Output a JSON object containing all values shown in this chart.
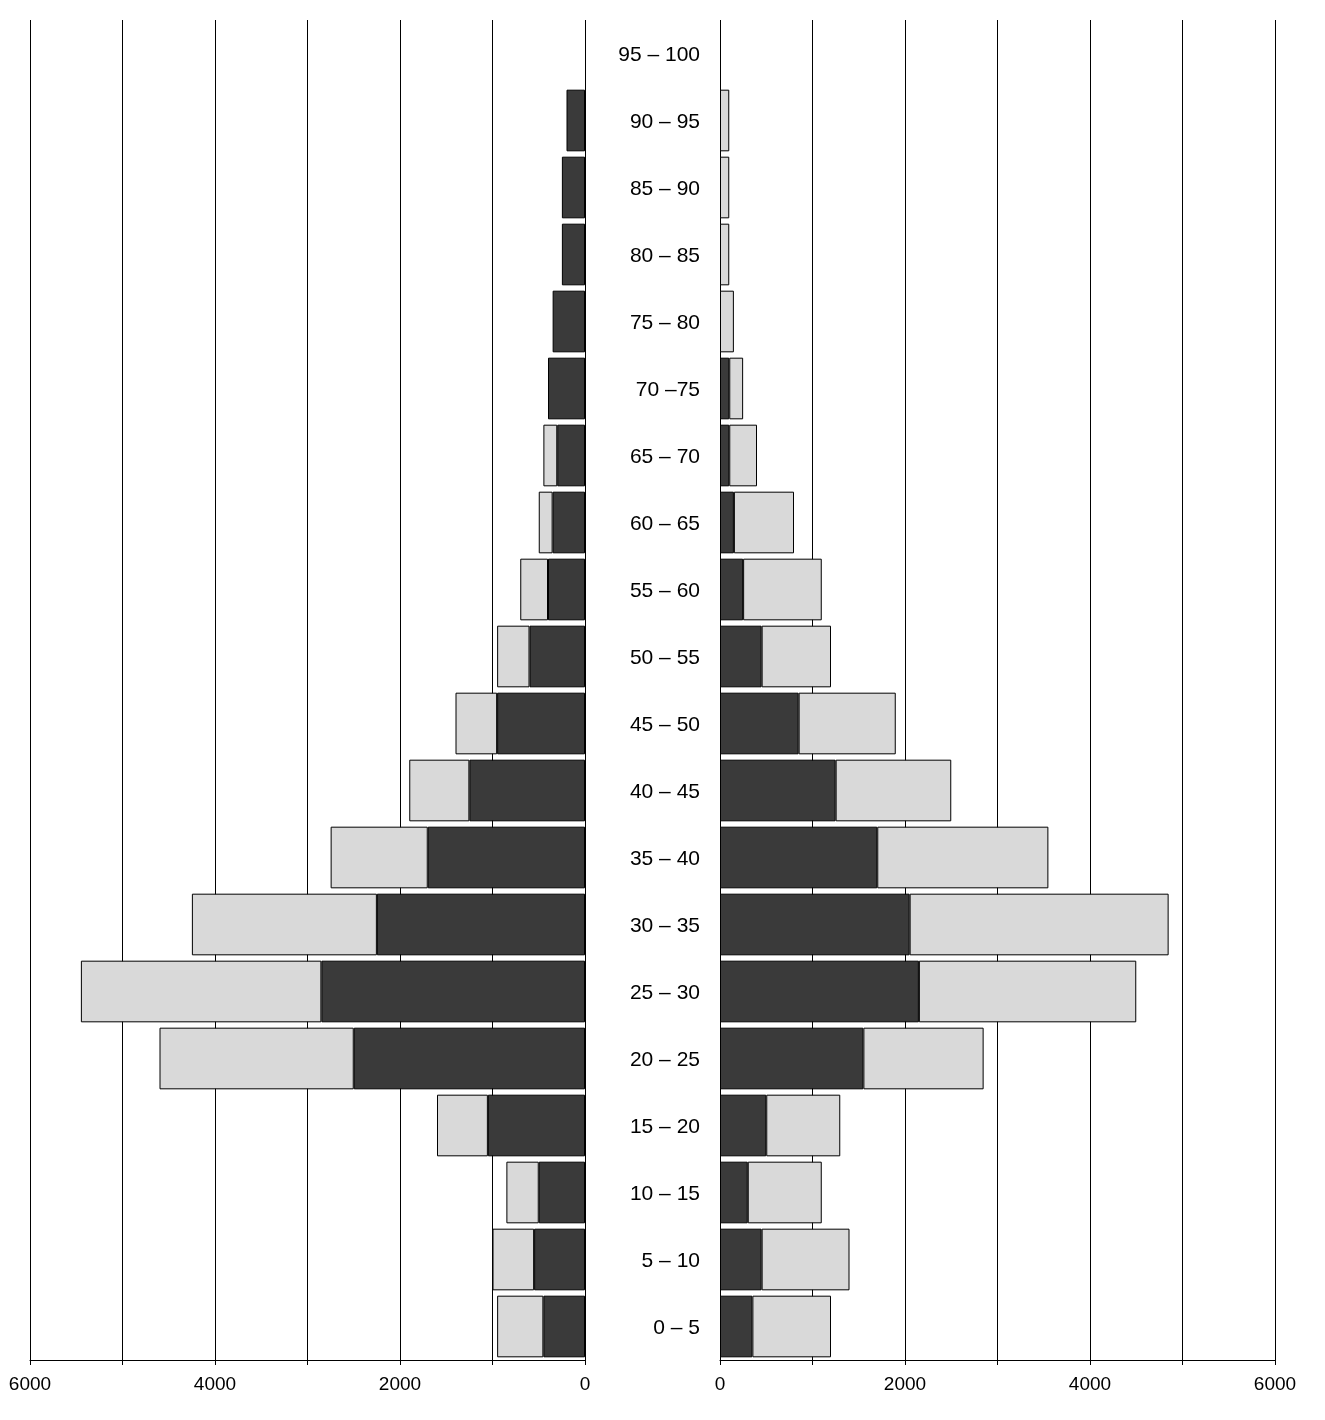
{
  "chart_data": [
    {
      "type": "bar",
      "orientation": "horizontal",
      "stacked": true,
      "grid": "x",
      "tick_labels": "x",
      "categories": [
        null,
        null,
        null,
        null,
        null,
        null,
        null,
        null,
        null,
        null,
        null,
        null,
        null,
        null,
        null,
        null,
        null,
        null,
        null,
        null
      ],
      "xlim": [
        6000,
        0
      ],
      "xticks": [
        6000,
        {
          "value": 5000,
          "label": null
        },
        4000,
        {
          "value": 3000,
          "label": null
        },
        2000,
        {
          "value": 1000,
          "label": null
        },
        0
      ],
      "series": [
        {
          "color": "#3a3a3a",
          "values": [
            null,
            200,
            250,
            250,
            350,
            400,
            300,
            350,
            400,
            600,
            950,
            1250,
            1700,
            2250,
            2850,
            2500,
            1050,
            500,
            550,
            450
          ]
        },
        {
          "color": "#d9d9d9",
          "values": [
            null,
            null,
            null,
            null,
            null,
            null,
            150,
            150,
            300,
            350,
            450,
            650,
            1050,
            2000,
            2600,
            2100,
            550,
            350,
            450,
            500
          ]
        }
      ]
    },
    {
      "type": "bar",
      "orientation": "horizontal",
      "stacked": true,
      "grid": "x",
      "categories": [
        "95 – 100",
        "90 – 95",
        "85 – 90",
        "80 – 85",
        "75 – 80",
        "70 –75",
        "65 – 70",
        "60 – 65",
        "55 – 60",
        "50 – 55",
        "45 – 50",
        "40 – 45",
        "35 – 40",
        "30 – 35",
        "25 – 30",
        "20 – 25",
        "15 – 20",
        "10 – 15",
        "5 – 10",
        "0 – 5"
      ],
      "xlim": [
        0,
        6000
      ],
      "xticks": [
        0,
        {
          "value": 1000,
          "label": null
        },
        2000,
        {
          "value": 3000,
          "label": null
        },
        4000,
        {
          "value": 5000,
          "label": null
        },
        6000
      ],
      "series": [
        {
          "color": "#3a3a3a",
          "values": [
            null,
            null,
            null,
            null,
            null,
            100,
            100,
            150,
            250,
            450,
            850,
            1250,
            1700,
            2050,
            2150,
            1550,
            500,
            300,
            450,
            350
          ]
        },
        {
          "color": "#d9d9d9",
          "values": [
            null,
            100,
            100,
            100,
            150,
            150,
            300,
            650,
            850,
            750,
            1050,
            1250,
            1850,
            2800,
            2350,
            1300,
            800,
            800,
            950,
            850
          ]
        }
      ]
    }
  ]
}
